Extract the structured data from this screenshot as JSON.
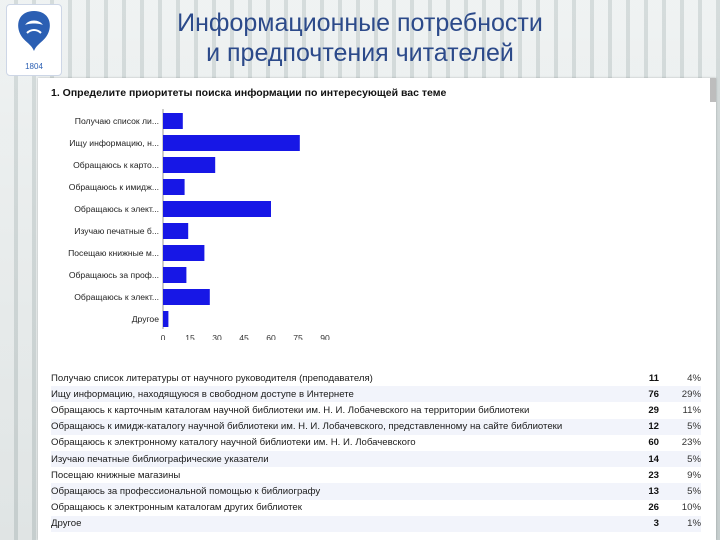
{
  "header": {
    "title_line1": "Информационные потребности",
    "title_line2": "и предпочтения читателей"
  },
  "logo": {
    "year": "1804"
  },
  "colors": {
    "bar": "#1717e6",
    "title": "#2c4a8a"
  },
  "chart_data": {
    "type": "bar",
    "orientation": "horizontal",
    "title": "1. Определите приоритеты поиска информации по интересующей вас теме",
    "categories": [
      "Получаю список ли...",
      "Ищу информацию, н...",
      "Обращаюсь к карто...",
      "Обращаюсь к имидж...",
      "Обращаюсь к элект...",
      "Изучаю печатные б...",
      "Посещаю книжные м...",
      "Обращаюсь за проф...",
      "Обращаюсь к элект...",
      "Другое"
    ],
    "values": [
      11,
      76,
      29,
      12,
      60,
      14,
      23,
      13,
      26,
      3
    ],
    "xticks": [
      "0",
      "15",
      "30",
      "45",
      "60",
      "75",
      "90"
    ],
    "xlim": [
      0,
      90
    ],
    "grid": false
  },
  "table": [
    {
      "label": "Получаю список литературы от научного руководителя (преподавателя)",
      "count": "11",
      "pct": "4%"
    },
    {
      "label": "Ищу информацию, находящуюся в свободном доступе в Интернете",
      "count": "76",
      "pct": "29%"
    },
    {
      "label": "Обращаюсь к карточным каталогам научной библиотеки им. Н. И. Лобачевского на территории библиотеки",
      "count": "29",
      "pct": "11%"
    },
    {
      "label": "Обращаюсь к имидж-каталогу научной библиотеки им. Н. И. Лобачевского, представленному на сайте библиотеки",
      "count": "12",
      "pct": "5%"
    },
    {
      "label": "Обращаюсь к электронному каталогу научной библиотеки им. Н. И. Лобачевского",
      "count": "60",
      "pct": "23%"
    },
    {
      "label": "Изучаю печатные библиографические указатели",
      "count": "14",
      "pct": "5%"
    },
    {
      "label": "Посещаю книжные магазины",
      "count": "23",
      "pct": "9%"
    },
    {
      "label": "Обращаюсь за профессиональной помощью к библиографу",
      "count": "13",
      "pct": "5%"
    },
    {
      "label": "Обращаюсь к электронным каталогам других библиотек",
      "count": "26",
      "pct": "10%"
    },
    {
      "label": "Другое",
      "count": "3",
      "pct": "1%"
    }
  ]
}
